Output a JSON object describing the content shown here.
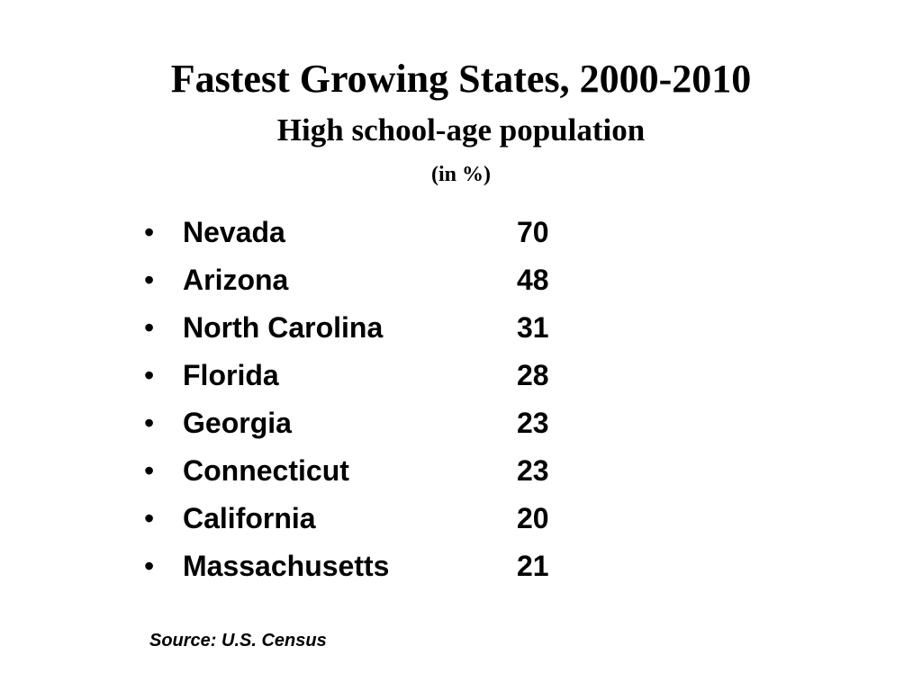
{
  "slide": {
    "title": "Fastest Growing States, 2000-2010",
    "subtitle": "High school-age population",
    "unit": "(in %)",
    "bullet_glyph": "•",
    "items": [
      {
        "state": "Nevada",
        "value": "70"
      },
      {
        "state": "Arizona",
        "value": "48"
      },
      {
        "state": "North Carolina",
        "value": "31"
      },
      {
        "state": "Florida",
        "value": "28"
      },
      {
        "state": "Georgia",
        "value": "23"
      },
      {
        "state": "Connecticut",
        "value": "23"
      },
      {
        "state": "California",
        "value": "20"
      },
      {
        "state": "Massachusetts",
        "value": "21"
      }
    ],
    "source": "Source: U.S. Census"
  }
}
